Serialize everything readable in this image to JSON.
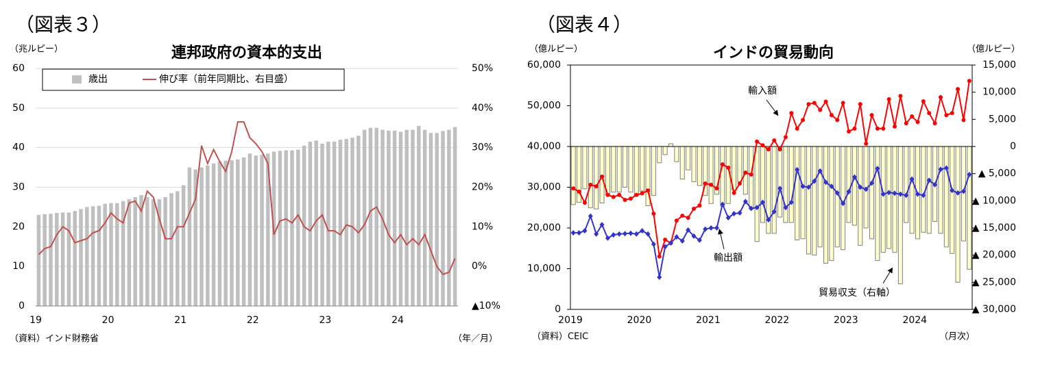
{
  "chart_data": [
    {
      "type": "bar",
      "figure_label": "（図表３）",
      "title": "連邦政府の資本的支出",
      "y_unit": "（兆ルピー）",
      "source": "（資料）インド財務省",
      "x_unit": "（年／月）",
      "categories": [
        "19",
        null,
        null,
        null,
        null,
        null,
        null,
        null,
        null,
        null,
        null,
        null,
        "20",
        null,
        null,
        null,
        null,
        null,
        null,
        null,
        null,
        null,
        null,
        null,
        "21",
        null,
        null,
        null,
        null,
        null,
        null,
        null,
        null,
        null,
        null,
        null,
        "22",
        null,
        null,
        null,
        null,
        null,
        null,
        null,
        null,
        null,
        null,
        null,
        "23",
        null,
        null,
        null,
        null,
        null,
        null,
        null,
        null,
        null,
        null,
        null,
        "24",
        null,
        null,
        null,
        null,
        null,
        null,
        null,
        null,
        null
      ],
      "series": [
        {
          "name": "歳出",
          "type": "bar",
          "color": "#bfbfbf",
          "values": [
            23,
            23.2,
            23.3,
            23.5,
            23.6,
            23.6,
            24,
            24.5,
            25,
            25.2,
            25.3,
            25.8,
            26,
            26,
            26.5,
            27,
            27.5,
            28,
            27.5,
            27,
            27,
            27.5,
            28.5,
            29,
            30.5,
            35,
            34.5,
            35,
            35.5,
            36,
            36.5,
            36.7,
            36.8,
            37,
            37.5,
            38.5,
            38,
            38.2,
            38.5,
            39,
            39.2,
            39.3,
            39.3,
            39.5,
            40.5,
            41.5,
            41.8,
            41,
            41.5,
            41.5,
            42,
            42.2,
            42.5,
            43,
            44.5,
            45,
            45,
            44.5,
            44.3,
            44.3,
            44,
            44.5,
            44.5,
            45.5,
            44.5,
            43.7,
            43.7,
            44.2,
            44.5,
            45.2
          ]
        },
        {
          "name": "伸び率（前年同期比、右目盛）",
          "type": "line",
          "axis": "y2",
          "color": "#c0504d",
          "values": [
            3,
            4.5,
            5,
            8,
            10,
            9,
            6,
            6.5,
            7,
            8.5,
            9,
            11,
            13.5,
            12,
            11,
            16,
            16.5,
            14,
            19,
            17.5,
            12,
            7,
            7,
            10,
            10,
            13.5,
            17,
            30.5,
            26,
            29.5,
            26.5,
            24,
            29,
            36.5,
            36.5,
            32.5,
            31,
            29,
            26,
            8,
            11.5,
            12,
            11,
            13,
            10,
            9,
            11.5,
            13,
            9,
            9,
            8,
            10.5,
            10,
            8.5,
            10.5,
            14,
            15,
            12,
            8,
            6,
            8,
            5.5,
            7,
            5.5,
            8,
            4,
            0,
            -2,
            -1.5,
            2
          ]
        }
      ],
      "ylim": [
        0,
        60
      ],
      "yticks": [
        0,
        10,
        20,
        30,
        40,
        50,
        60
      ],
      "y2lim": [
        -10,
        50
      ],
      "y2ticks": [
        {
          "value": -10,
          "label": "▲10%"
        },
        {
          "value": 0,
          "label": "0%"
        },
        {
          "value": 10,
          "label": "10%"
        },
        {
          "value": 20,
          "label": "20%"
        },
        {
          "value": 30,
          "label": "30%"
        },
        {
          "value": 40,
          "label": "40%"
        },
        {
          "value": 50,
          "label": "50%"
        }
      ],
      "grid": true,
      "legend": "top-left"
    },
    {
      "type": "line",
      "figure_label": "（図表４）",
      "title": "インドの貿易動向",
      "y_unit": "（億ルピー）",
      "y2_unit": "（億ルピー）",
      "source": "（資料）CEIC",
      "x_unit": "（月次）",
      "categories": [
        "2019",
        null,
        null,
        null,
        null,
        null,
        null,
        null,
        null,
        null,
        null,
        null,
        "2020",
        null,
        null,
        null,
        null,
        null,
        null,
        null,
        null,
        null,
        null,
        null,
        "2021",
        null,
        null,
        null,
        null,
        null,
        null,
        null,
        null,
        null,
        null,
        null,
        "2022",
        null,
        null,
        null,
        null,
        null,
        null,
        null,
        null,
        null,
        null,
        null,
        "2023",
        null,
        null,
        null,
        null,
        null,
        null,
        null,
        null,
        null,
        null,
        null,
        "2024",
        null,
        null,
        null,
        null,
        null,
        null,
        null,
        null,
        null
      ],
      "series": [
        {
          "name": "輸入額",
          "type": "line",
          "marker": "circle",
          "color": "#ff0000",
          "values": [
            29700,
            28900,
            26200,
            30600,
            30200,
            32600,
            28100,
            27600,
            28100,
            26900,
            27200,
            28100,
            28500,
            29200,
            23500,
            13000,
            17100,
            16300,
            21800,
            23000,
            22500,
            24700,
            25500,
            30900,
            30600,
            29700,
            35600,
            34800,
            28600,
            30900,
            33600,
            33100,
            41200,
            40300,
            39300,
            41500,
            39300,
            42300,
            48200,
            44400,
            46500,
            50400,
            50700,
            49000,
            51000,
            47700,
            46500,
            50700,
            43700,
            44400,
            50400,
            40700,
            47700,
            44400,
            44400,
            51600,
            44900,
            52400,
            45700,
            47400,
            46000,
            51100,
            48200,
            45700,
            52100,
            47700,
            48200,
            54100,
            46500,
            56100
          ]
        },
        {
          "name": "輸出額",
          "type": "line",
          "marker": "diamond",
          "color": "#3333cc",
          "values": [
            18800,
            18800,
            19300,
            22900,
            18500,
            20800,
            17500,
            18300,
            18500,
            18600,
            18700,
            18500,
            19300,
            18500,
            16000,
            7900,
            15400,
            16300,
            17800,
            16800,
            19500,
            18000,
            17000,
            19700,
            20000,
            20000,
            25800,
            22500,
            23500,
            23700,
            26500,
            24800,
            25000,
            26300,
            22000,
            24000,
            29700,
            25000,
            26300,
            34300,
            30200,
            30000,
            31500,
            34000,
            31200,
            30200,
            28600,
            26000,
            28900,
            32500,
            30000,
            29500,
            31000,
            34600,
            28300,
            28700,
            28500,
            28300,
            28000,
            32000,
            28300,
            28000,
            31700,
            30600,
            34400,
            34700,
            29200,
            28600,
            29000,
            33100
          ]
        },
        {
          "name": "貿易収支（右軸）",
          "type": "bar",
          "axis": "y2",
          "color": "#ffffcc",
          "edgecolor": "#7f7f7f",
          "values": [
            -10700,
            -10300,
            -7800,
            -11300,
            -11500,
            -10400,
            -8800,
            -8400,
            -8400,
            -7500,
            -8400,
            -9000,
            -8200,
            -10900,
            -9000,
            -3000,
            -1500,
            500,
            -2800,
            -6000,
            -4300,
            -6500,
            -7200,
            -9000,
            -10500,
            -8800,
            -11000,
            -10500,
            -8000,
            -6500,
            -8800,
            -11500,
            -17500,
            -14000,
            -16000,
            -16000,
            -13000,
            -14000,
            -14000,
            -17200,
            -17000,
            -19800,
            -20000,
            -18500,
            -21500,
            -21000,
            -18500,
            -19000,
            -14000,
            -14500,
            -18200,
            -15000,
            -17000,
            -21000,
            -19500,
            -18800,
            -19500,
            -25300,
            -14000,
            -16000,
            -17000,
            -15800,
            -16000,
            -13800,
            -16000,
            -18500,
            -19700,
            -25000,
            -17400,
            -22600
          ]
        }
      ],
      "ylim": [
        0,
        60000
      ],
      "yticks": [
        0,
        {
          "value": 10000,
          "label": "10,000"
        },
        {
          "value": 20000,
          "label": "20,000"
        },
        {
          "value": 30000,
          "label": "30,000"
        },
        {
          "value": 40000,
          "label": "40,000"
        },
        {
          "value": 50000,
          "label": "50,000"
        },
        {
          "value": 60000,
          "label": "60,000"
        }
      ],
      "y2lim": [
        -30000,
        15000
      ],
      "y2ticks": [
        {
          "value": 15000,
          "label": "15,000"
        },
        {
          "value": 10000,
          "label": "10,000"
        },
        {
          "value": 5000,
          "label": "5,000"
        },
        0,
        {
          "value": -5000,
          "label": "▲ 5,000"
        },
        {
          "value": -10000,
          "label": "▲ 10,000"
        },
        {
          "value": -15000,
          "label": "▲ 15,000"
        },
        {
          "value": -20000,
          "label": "▲ 20,000"
        },
        {
          "value": -25000,
          "label": "▲ 25,000"
        },
        {
          "value": -30000,
          "label": "▲ 30,000"
        }
      ],
      "grid": false,
      "frame": true
    }
  ]
}
